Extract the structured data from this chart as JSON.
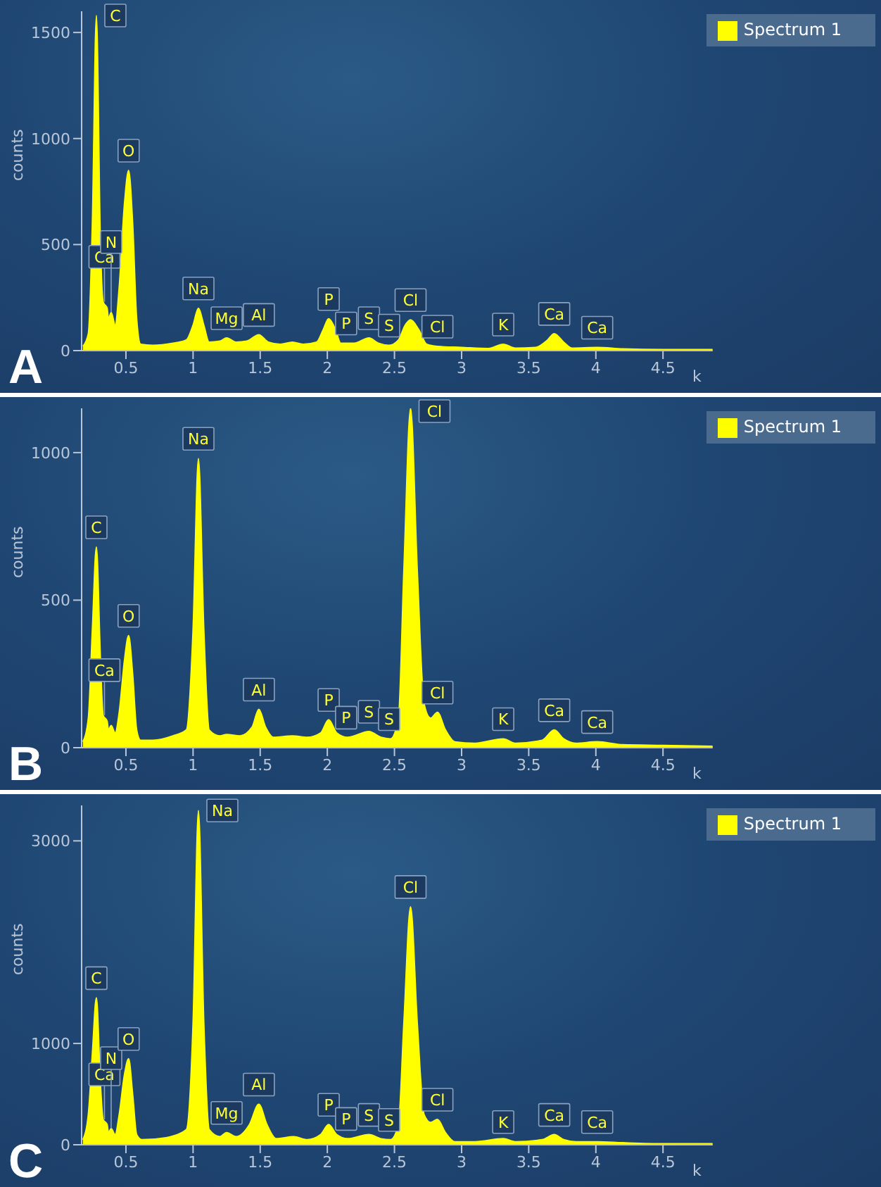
{
  "chart_data": [
    {
      "type": "area",
      "xlabel": "k",
      "ylabel": "counts",
      "legend": "top right",
      "grid": false,
      "x": [
        0.18,
        0.22,
        0.25,
        0.28,
        0.31,
        0.33,
        0.36,
        0.37,
        0.39,
        0.42,
        0.45,
        0.49,
        0.52,
        0.55,
        0.58,
        0.61,
        0.7,
        0.85,
        0.95,
        1.0,
        1.04,
        1.08,
        1.12,
        1.2,
        1.25,
        1.32,
        1.4,
        1.49,
        1.56,
        1.65,
        1.74,
        1.82,
        1.92,
        1.97,
        2.01,
        2.06,
        2.1,
        2.2,
        2.31,
        2.38,
        2.46,
        2.53,
        2.58,
        2.62,
        2.68,
        2.74,
        2.82,
        3.0,
        3.2,
        3.31,
        3.4,
        3.55,
        3.64,
        3.69,
        3.76,
        3.82,
        4.01,
        4.2,
        4.5,
        4.87
      ],
      "series": [
        {
          "name": "Spectrum 1",
          "color": "#ffff00",
          "values": [
            20,
            80,
            600,
            1580,
            500,
            230,
            200,
            150,
            180,
            120,
            300,
            700,
            850,
            600,
            150,
            30,
            25,
            35,
            50,
            120,
            200,
            120,
            40,
            45,
            60,
            40,
            45,
            75,
            40,
            30,
            40,
            30,
            40,
            100,
            150,
            100,
            35,
            35,
            60,
            35,
            25,
            50,
            120,
            145,
            100,
            30,
            20,
            15,
            10,
            30,
            12,
            15,
            50,
            80,
            40,
            12,
            15,
            8,
            5,
            5
          ]
        }
      ],
      "xlim": [
        0.17,
        4.87
      ],
      "xticks": [
        0.5,
        1,
        1.5,
        2,
        2.5,
        3,
        3.5,
        4,
        4.5
      ],
      "ylim": [
        0,
        1600
      ],
      "yticks": [
        0,
        500,
        1000,
        1500
      ],
      "annotations": [
        "A",
        {
          "text": "C",
          "x": 0.28,
          "y": 1580
        },
        {
          "text": "Ca",
          "x": 0.34,
          "y": 230
        },
        {
          "text": "N",
          "x": 0.39,
          "y": 180
        },
        {
          "text": "O",
          "x": 0.52,
          "y": 850
        },
        {
          "text": "Na",
          "x": 1.04,
          "y": 200
        },
        {
          "text": "Mg",
          "x": 1.25,
          "y": 60
        },
        {
          "text": "Al",
          "x": 1.49,
          "y": 75
        },
        {
          "text": "P",
          "x": 2.01,
          "y": 150
        },
        {
          "text": "P",
          "x": 2.14,
          "y": 35
        },
        {
          "text": "S",
          "x": 2.31,
          "y": 60
        },
        {
          "text": "S",
          "x": 2.46,
          "y": 25
        },
        {
          "text": "Cl",
          "x": 2.62,
          "y": 145
        },
        {
          "text": "Cl",
          "x": 2.82,
          "y": 20
        },
        {
          "text": "K",
          "x": 3.31,
          "y": 30
        },
        {
          "text": "Ca",
          "x": 3.69,
          "y": 80
        },
        {
          "text": "Ca",
          "x": 4.01,
          "y": 15
        }
      ]
    },
    {
      "type": "area",
      "xlabel": "k",
      "ylabel": "counts",
      "legend": "top right",
      "grid": false,
      "x": [
        0.18,
        0.22,
        0.25,
        0.28,
        0.31,
        0.33,
        0.36,
        0.37,
        0.39,
        0.42,
        0.45,
        0.49,
        0.52,
        0.55,
        0.58,
        0.61,
        0.7,
        0.85,
        0.95,
        1.0,
        1.04,
        1.08,
        1.12,
        1.2,
        1.25,
        1.35,
        1.44,
        1.49,
        1.54,
        1.6,
        1.74,
        1.85,
        1.95,
        2.01,
        2.07,
        2.15,
        2.31,
        2.4,
        2.47,
        2.53,
        2.57,
        2.62,
        2.67,
        2.72,
        2.77,
        2.82,
        2.88,
        2.95,
        3.1,
        3.31,
        3.4,
        3.6,
        3.69,
        3.76,
        3.85,
        4.01,
        4.2,
        4.5,
        4.87
      ],
      "series": [
        {
          "name": "Spectrum 1",
          "color": "#ffff00",
          "values": [
            20,
            100,
            400,
            680,
            300,
            110,
            90,
            60,
            75,
            50,
            120,
            300,
            380,
            250,
            60,
            25,
            25,
            40,
            60,
            400,
            980,
            400,
            60,
            40,
            45,
            40,
            70,
            130,
            70,
            35,
            40,
            35,
            50,
            95,
            50,
            35,
            55,
            35,
            30,
            100,
            600,
            1150,
            600,
            150,
            100,
            120,
            60,
            20,
            15,
            30,
            15,
            25,
            60,
            30,
            15,
            20,
            10,
            8,
            5
          ]
        }
      ],
      "xlim": [
        0.17,
        4.87
      ],
      "xticks": [
        0.5,
        1,
        1.5,
        2,
        2.5,
        3,
        3.5,
        4,
        4.5
      ],
      "ylim": [
        0,
        1150
      ],
      "yticks": [
        0,
        500,
        1000
      ],
      "annotations": [
        "B",
        {
          "text": "C",
          "x": 0.28,
          "y": 680
        },
        {
          "text": "Ca",
          "x": 0.34,
          "y": 110
        },
        {
          "text": "O",
          "x": 0.52,
          "y": 380
        },
        {
          "text": "Na",
          "x": 1.04,
          "y": 980
        },
        {
          "text": "Al",
          "x": 1.49,
          "y": 130
        },
        {
          "text": "P",
          "x": 2.01,
          "y": 95
        },
        {
          "text": "P",
          "x": 2.14,
          "y": 35
        },
        {
          "text": "S",
          "x": 2.31,
          "y": 55
        },
        {
          "text": "S",
          "x": 2.46,
          "y": 30
        },
        {
          "text": "Cl",
          "x": 2.62,
          "y": 1150
        },
        {
          "text": "Cl",
          "x": 2.82,
          "y": 120
        },
        {
          "text": "K",
          "x": 3.31,
          "y": 30
        },
        {
          "text": "Ca",
          "x": 3.69,
          "y": 60
        },
        {
          "text": "Ca",
          "x": 4.01,
          "y": 20
        }
      ]
    },
    {
      "type": "area",
      "xlabel": "k",
      "ylabel": "counts",
      "legend": "top right",
      "grid": false,
      "x": [
        0.18,
        0.22,
        0.25,
        0.28,
        0.31,
        0.33,
        0.36,
        0.37,
        0.39,
        0.42,
        0.45,
        0.49,
        0.52,
        0.55,
        0.58,
        0.62,
        0.8,
        0.95,
        1.0,
        1.04,
        1.08,
        1.12,
        1.2,
        1.25,
        1.32,
        1.42,
        1.49,
        1.55,
        1.62,
        1.75,
        1.85,
        1.95,
        2.01,
        2.07,
        2.15,
        2.31,
        2.4,
        2.47,
        2.53,
        2.57,
        2.62,
        2.67,
        2.72,
        2.77,
        2.82,
        2.88,
        2.95,
        3.1,
        3.31,
        3.4,
        3.6,
        3.69,
        3.76,
        3.85,
        4.01,
        4.2,
        4.5,
        4.87
      ],
      "series": [
        {
          "name": "Spectrum 1",
          "color": "#ffff00",
          "values": [
            50,
            300,
            900,
            1450,
            600,
            250,
            200,
            120,
            160,
            100,
            300,
            700,
            850,
            500,
            100,
            50,
            70,
            150,
            1200,
            3300,
            1200,
            150,
            80,
            120,
            80,
            200,
            400,
            200,
            60,
            80,
            50,
            100,
            200,
            100,
            60,
            100,
            60,
            50,
            200,
            1200,
            2350,
            1200,
            300,
            220,
            250,
            120,
            30,
            30,
            60,
            30,
            50,
            100,
            50,
            30,
            30,
            20,
            10,
            10
          ]
        }
      ],
      "xlim": [
        0.17,
        4.87
      ],
      "xticks": [
        0.5,
        1,
        1.5,
        2,
        2.5,
        3,
        3.5,
        4,
        4.5
      ],
      "ylim": [
        0,
        3350
      ],
      "yticks": [
        0,
        1000,
        3000
      ],
      "annotations": [
        "C",
        {
          "text": "C",
          "x": 0.28,
          "y": 1450
        },
        {
          "text": "Ca",
          "x": 0.34,
          "y": 250
        },
        {
          "text": "N",
          "x": 0.39,
          "y": 160
        },
        {
          "text": "O",
          "x": 0.52,
          "y": 850
        },
        {
          "text": "Na",
          "x": 1.04,
          "y": 3300
        },
        {
          "text": "Mg",
          "x": 1.25,
          "y": 120
        },
        {
          "text": "Al",
          "x": 1.49,
          "y": 400
        },
        {
          "text": "P",
          "x": 2.01,
          "y": 200
        },
        {
          "text": "P",
          "x": 2.14,
          "y": 60
        },
        {
          "text": "S",
          "x": 2.31,
          "y": 100
        },
        {
          "text": "S",
          "x": 2.46,
          "y": 50
        },
        {
          "text": "Cl",
          "x": 2.62,
          "y": 2350
        },
        {
          "text": "Cl",
          "x": 2.82,
          "y": 250
        },
        {
          "text": "K",
          "x": 3.31,
          "y": 30
        },
        {
          "text": "Ca",
          "x": 3.69,
          "y": 100
        },
        {
          "text": "Ca",
          "x": 4.01,
          "y": 30
        }
      ]
    }
  ]
}
